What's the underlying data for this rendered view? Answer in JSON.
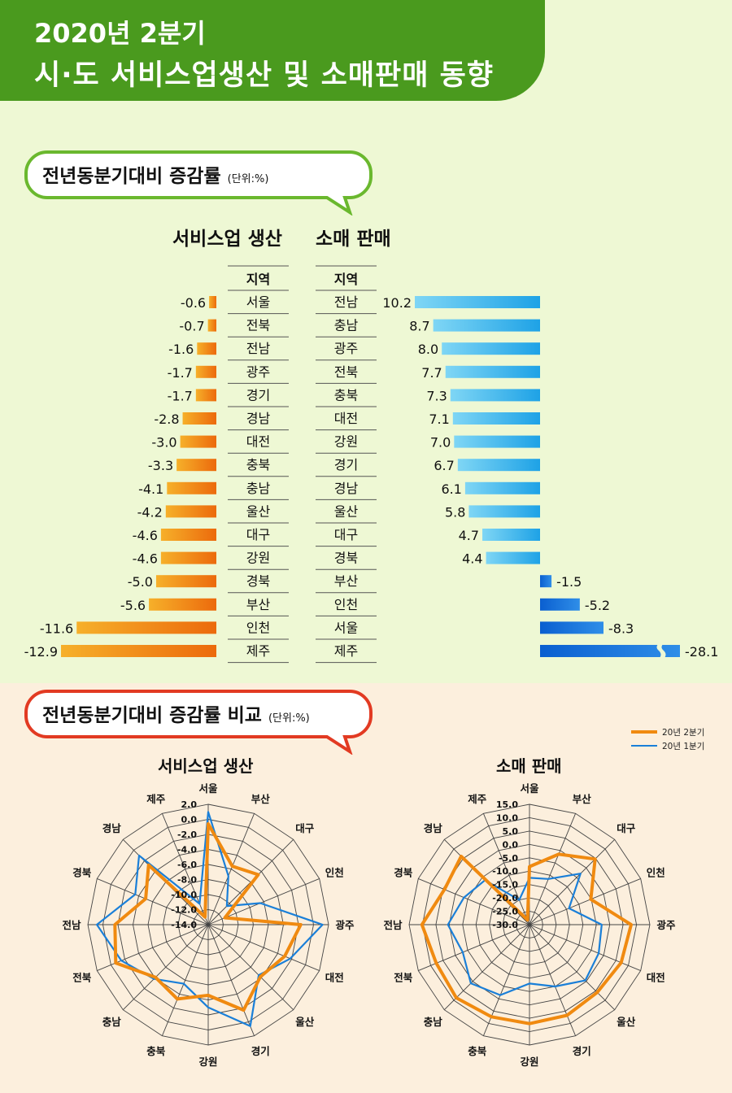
{
  "title_line1": "2020년 2분기",
  "title_line2": "시·도 서비스업생산 및 소매판매 동향",
  "section1": {
    "title": "전년동분기대비 증감률",
    "unit": "(단위:%)"
  },
  "section2": {
    "title": "전년동분기대비 증감률 비교",
    "unit": "(단위:%)"
  },
  "colors": {
    "green": "#4a9a1e",
    "orange": "#f08a10",
    "blue": "#1a7fd8",
    "sky": "#2cb0ea"
  },
  "chart_data": [
    {
      "type": "bar",
      "title": "서비스업 생산",
      "column_header": "지역",
      "categories": [
        "서울",
        "전북",
        "전남",
        "광주",
        "경기",
        "경남",
        "대전",
        "충북",
        "충남",
        "울산",
        "대구",
        "강원",
        "경북",
        "부산",
        "인천",
        "제주"
      ],
      "values": [
        -0.6,
        -0.7,
        -1.6,
        -1.7,
        -1.7,
        -2.8,
        -3.0,
        -3.3,
        -4.1,
        -4.2,
        -4.6,
        -4.6,
        -5.0,
        -5.6,
        -11.6,
        -12.9
      ],
      "labels": [
        "-0.6",
        "-0.7",
        "-1.6",
        "-1.7",
        "-1.7",
        "-2.8",
        "-3.0",
        "-3.3",
        "-4.1",
        "-4.2",
        "-4.6",
        "-4.6",
        "-5.0",
        "-5.6",
        "-11.6",
        "-12.9"
      ]
    },
    {
      "type": "bar",
      "title": "소매 판매",
      "column_header": "지역",
      "categories": [
        "전남",
        "충남",
        "광주",
        "전북",
        "충북",
        "대전",
        "강원",
        "경기",
        "경남",
        "울산",
        "대구",
        "경북",
        "부산",
        "인천",
        "서울",
        "제주"
      ],
      "values": [
        10.2,
        8.7,
        8.0,
        7.7,
        7.3,
        7.1,
        7.0,
        6.7,
        6.1,
        5.8,
        4.7,
        4.4,
        -1.5,
        -5.2,
        -8.3,
        -28.1
      ],
      "labels": [
        "10.2",
        "8.7",
        "8.0",
        "7.7",
        "7.3",
        "7.1",
        "7.0",
        "6.7",
        "6.1",
        "5.8",
        "4.7",
        "4.4",
        "-1.5",
        "-5.2",
        "-8.3",
        "-28.1"
      ]
    },
    {
      "type": "radar",
      "title": "서비스업 생산",
      "categories": [
        "서울",
        "부산",
        "대구",
        "인천",
        "광주",
        "대전",
        "울산",
        "경기",
        "강원",
        "충북",
        "충남",
        "전북",
        "전남",
        "경북",
        "경남",
        "제주"
      ],
      "ticks": [
        "2.0",
        "0.0",
        "-2.0",
        "-4.0",
        "-6.0",
        "-8.0",
        "-10.0",
        "-12.0",
        "-14.0"
      ],
      "rmin": -14,
      "rmax": 2,
      "series": [
        {
          "name": "20년 2분기",
          "values": [
            -0.6,
            -5.6,
            -4.6,
            -11.6,
            -1.7,
            -3.0,
            -4.2,
            -1.7,
            -4.6,
            -3.3,
            -4.1,
            -0.7,
            -1.6,
            -5.0,
            -2.8,
            -12.9
          ]
        },
        {
          "name": "20년 1분기",
          "values": [
            1.0,
            -7.0,
            -10.5,
            -6.5,
            1.2,
            -2.2,
            -4.5,
            0.6,
            -3.0,
            -5.5,
            -3.8,
            -1.5,
            0.8,
            -3.5,
            -1.0,
            -11.0
          ]
        }
      ]
    },
    {
      "type": "radar",
      "title": "소매 판매",
      "categories": [
        "서울",
        "부산",
        "대구",
        "인천",
        "광주",
        "대전",
        "울산",
        "경기",
        "강원",
        "충북",
        "충남",
        "전북",
        "전남",
        "경북",
        "경남",
        "제주"
      ],
      "ticks": [
        "15.0",
        "10.0",
        "5.0",
        "0.0",
        "-5.0",
        "-10.0",
        "-15.0",
        "-20.0",
        "-25.0",
        "-30.0"
      ],
      "rmin": -30,
      "rmax": 15,
      "series": [
        {
          "name": "20년 2분기",
          "values": [
            -8.3,
            -1.5,
            4.7,
            -5.2,
            8.0,
            7.1,
            5.8,
            6.7,
            7.0,
            7.3,
            8.7,
            7.7,
            10.2,
            4.4,
            6.1,
            -28.1
          ]
        },
        {
          "name": "20년 1분기",
          "values": [
            -12.5,
            -11.5,
            -3.0,
            -14.0,
            -3.0,
            -2.0,
            -0.5,
            -5.0,
            -8.0,
            -1.5,
            1.0,
            -3.0,
            0.5,
            -3.5,
            -6.5,
            -20.0
          ]
        }
      ],
      "legend": [
        "20년 2분기",
        "20년 1분기"
      ]
    }
  ]
}
